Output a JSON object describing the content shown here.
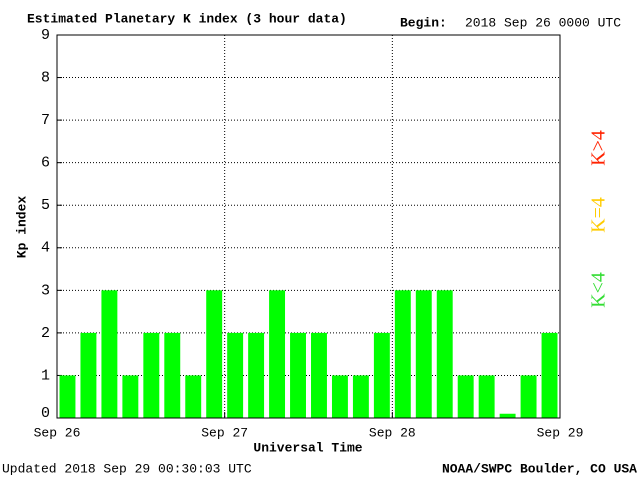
{
  "chart_data": {
    "type": "bar",
    "title": "Estimated Planetary K index (3 hour data)",
    "begin_label": "Begin:",
    "begin_value": "2018 Sep 26 0000 UTC",
    "y_label": "Kp index",
    "x_label": "Universal Time",
    "footer_left": "Updated 2018 Sep 29 00:30:03 UTC",
    "footer_right": "NOAA/SWPC Boulder, CO USA",
    "categories": [
      null,
      null,
      null,
      null,
      null,
      null,
      null,
      null,
      null,
      null,
      null,
      null,
      null,
      null,
      null,
      null,
      null,
      null,
      null,
      null,
      null,
      null,
      null,
      null
    ],
    "values": [
      1,
      2,
      3,
      1,
      2,
      2,
      1,
      3,
      2,
      2,
      3,
      2,
      2,
      1,
      1,
      2,
      3,
      3,
      3,
      1,
      1,
      0.1,
      1,
      2
    ],
    "color": "#00ff00",
    "ylim": [
      0,
      9
    ],
    "yticks": [
      0,
      1,
      2,
      3,
      4,
      5,
      6,
      7,
      8,
      9
    ],
    "xticks": [
      "Sep 26",
      "Sep 27",
      "Sep 28",
      "Sep 29"
    ],
    "grid": true,
    "legend": [
      {
        "label": "K<4",
        "color": "#33dd33"
      },
      {
        "label": "K=4",
        "color": "#ffcc00"
      },
      {
        "label": "K>4",
        "color": "#ff2200"
      }
    ]
  }
}
